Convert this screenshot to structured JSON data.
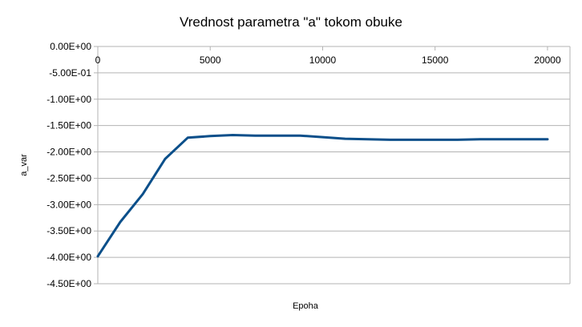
{
  "chart_data": {
    "type": "line",
    "title": "Vrednost parametra \"a\" tokom obuke",
    "xlabel": "Epoha",
    "ylabel": "a_var",
    "xlim": [
      0,
      21000
    ],
    "ylim": [
      -4.5,
      0
    ],
    "x_ticks": [
      0,
      5000,
      10000,
      15000,
      20000
    ],
    "x_tick_labels": [
      "0",
      "5000",
      "10000",
      "15000",
      "20000"
    ],
    "y_ticks": [
      0,
      -0.5,
      -1,
      -1.5,
      -2,
      -2.5,
      -3,
      -3.5,
      -4,
      -4.5
    ],
    "y_tick_labels": [
      "0.00E+00",
      "-5.00E-01",
      "-1.00E+00",
      "-1.50E+00",
      "-2.00E+00",
      "-2.50E+00",
      "-3.00E+00",
      "-3.50E+00",
      "-4.00E+00",
      "-4.50E+00"
    ],
    "grid": true,
    "legend": "none",
    "series": [
      {
        "color": "#0b4f8a",
        "x": [
          0,
          1000,
          2000,
          3000,
          4000,
          5000,
          6000,
          7000,
          8000,
          9000,
          10000,
          11000,
          12000,
          13000,
          14000,
          15000,
          16000,
          17000,
          18000,
          19000,
          20000
        ],
        "y": [
          -3.98,
          -3.33,
          -2.8,
          -2.13,
          -1.73,
          -1.7,
          -1.68,
          -1.69,
          -1.69,
          -1.69,
          -1.72,
          -1.75,
          -1.76,
          -1.77,
          -1.77,
          -1.77,
          -1.77,
          -1.76,
          -1.76,
          -1.76,
          -1.76
        ]
      }
    ]
  }
}
